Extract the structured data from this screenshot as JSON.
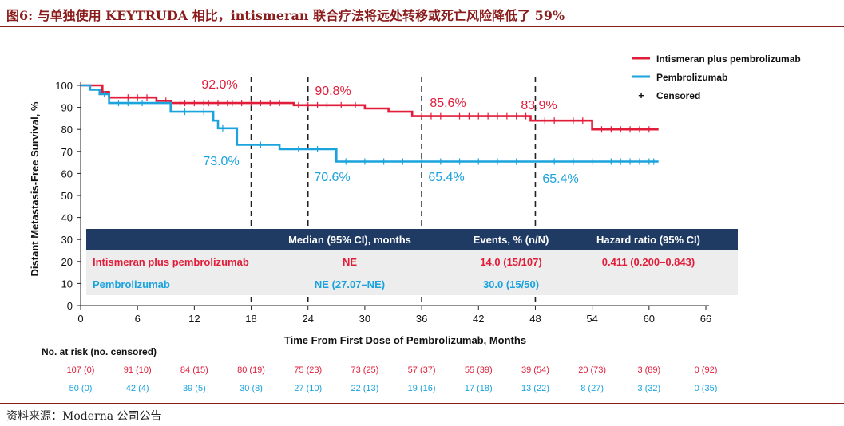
{
  "figure_title": "图6:  与单独使用 KEYTRUDA 相比，intismeran 联合疗法将远处转移或死亡风险降低了 59%",
  "source": "资料来源：Moderna 公司公告",
  "colors": {
    "combo": "#e11d3a",
    "mono": "#1aa3dd",
    "table_header": "#1f3b64",
    "title": "#8b1c1c",
    "table_body": "#ededed"
  },
  "chart_data": {
    "type": "line",
    "xlabel": "Time From First Dose of Pembrolizumab, Months",
    "ylabel": "Distant Metastasis-Free Survival, %",
    "xlim": [
      0,
      66
    ],
    "ylim": [
      0,
      100
    ],
    "xticks": [
      0,
      6,
      12,
      18,
      24,
      30,
      36,
      42,
      48,
      54,
      60,
      66
    ],
    "yticks": [
      0,
      10,
      20,
      30,
      40,
      50,
      60,
      70,
      80,
      90,
      100
    ],
    "reference_lines_x": [
      18,
      24,
      36,
      48
    ],
    "legend": {
      "position": "top-right",
      "entries": [
        "Intismeran plus pembrolizumab",
        "Pembrolizumab",
        "Censored"
      ],
      "censored_marker": "+"
    },
    "series": [
      {
        "name": "Intismeran plus pembrolizumab",
        "color": "#e11d3a",
        "steps": [
          [
            0,
            100
          ],
          [
            2.3,
            100
          ],
          [
            2.3,
            97
          ],
          [
            3,
            97
          ],
          [
            3,
            94.5
          ],
          [
            8,
            94.5
          ],
          [
            8,
            93
          ],
          [
            9.5,
            93
          ],
          [
            9.5,
            92
          ],
          [
            22.5,
            92
          ],
          [
            22.5,
            91
          ],
          [
            30,
            91
          ],
          [
            30,
            89.5
          ],
          [
            32.5,
            89.5
          ],
          [
            32.5,
            88
          ],
          [
            35,
            88
          ],
          [
            35,
            86
          ],
          [
            47.5,
            86
          ],
          [
            47.5,
            84
          ],
          [
            54,
            84
          ],
          [
            54,
            80
          ],
          [
            61,
            80
          ]
        ],
        "censored": [
          5,
          6,
          7,
          9,
          10.5,
          11,
          12,
          13,
          13.5,
          14.5,
          15.5,
          16,
          17,
          18,
          19,
          20,
          21,
          23,
          24,
          25,
          26,
          27.5,
          29,
          36,
          37,
          38,
          40,
          41,
          42,
          43,
          44,
          45,
          46,
          47,
          49,
          50,
          52,
          53,
          55,
          56,
          57,
          58,
          59,
          60
        ],
        "milestones": [
          {
            "x": 18,
            "label": "92.0%"
          },
          {
            "x": 24,
            "label": "90.8%"
          },
          {
            "x": 36,
            "label": "85.6%"
          },
          {
            "x": 48,
            "label": "83.9%"
          }
        ]
      },
      {
        "name": "Pembrolizumab",
        "color": "#1aa3dd",
        "steps": [
          [
            0,
            100
          ],
          [
            1,
            100
          ],
          [
            1,
            98
          ],
          [
            2,
            98
          ],
          [
            2,
            96
          ],
          [
            3,
            96
          ],
          [
            3,
            92
          ],
          [
            9.5,
            92
          ],
          [
            9.5,
            88
          ],
          [
            14,
            88
          ],
          [
            14,
            84
          ],
          [
            14.5,
            84
          ],
          [
            14.5,
            80.5
          ],
          [
            16.5,
            80.5
          ],
          [
            16.5,
            73
          ],
          [
            21,
            73
          ],
          [
            21,
            71
          ],
          [
            27,
            71
          ],
          [
            27,
            65.4
          ],
          [
            61,
            65.4
          ]
        ],
        "censored": [
          2.5,
          4,
          5,
          6.5,
          11,
          13,
          15,
          19,
          23,
          25,
          28,
          30,
          32,
          34,
          36,
          38,
          40,
          42,
          44,
          46,
          50,
          52,
          54,
          56,
          57,
          58,
          59,
          60,
          60.5
        ],
        "milestones": [
          {
            "x": 18,
            "label": "73.0%"
          },
          {
            "x": 24,
            "label": "70.6%"
          },
          {
            "x": 36,
            "label": "65.4%"
          },
          {
            "x": 48,
            "label": "65.4%"
          }
        ]
      }
    ],
    "table": {
      "headers": [
        "",
        "Median (95% CI), months",
        "Events, % (n/N)",
        "Hazard ratio (95% CI)"
      ],
      "rows": [
        [
          "Intismeran plus pembrolizumab",
          "NE",
          "14.0 (15/107)",
          "0.411 (0.200–0.843)"
        ],
        [
          "Pembrolizumab",
          "NE (27.07–NE)",
          "30.0 (15/50)",
          ""
        ]
      ]
    },
    "at_risk": {
      "title": "No. at risk (no. censored)",
      "rows": [
        [
          "107 (0)",
          "91 (10)",
          "84 (15)",
          "80 (19)",
          "75 (23)",
          "73 (25)",
          "57 (37)",
          "55 (39)",
          "39 (54)",
          "20 (73)",
          "3 (89)",
          "0 (92)"
        ],
        [
          "50 (0)",
          "42 (4)",
          "39 (5)",
          "30 (8)",
          "27 (10)",
          "22 (13)",
          "19 (16)",
          "17 (18)",
          "13 (22)",
          "8 (27)",
          "3 (32)",
          "0 (35)"
        ]
      ]
    }
  }
}
